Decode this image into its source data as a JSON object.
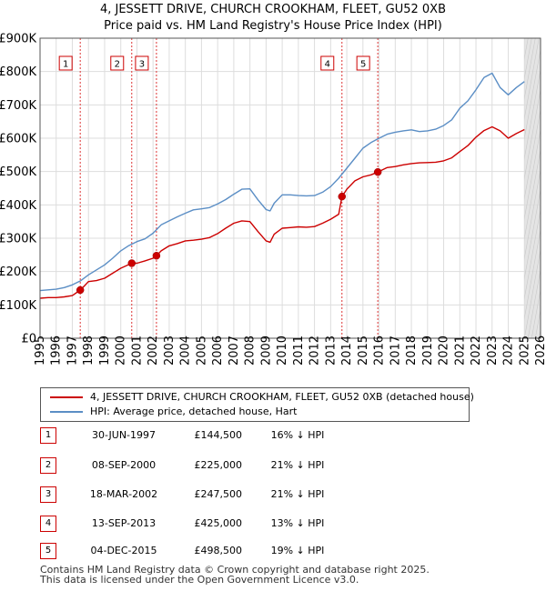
{
  "chart_data": {
    "type": "line",
    "title": "4, JESSETT DRIVE, CHURCH CROOKHAM, FLEET, GU52 0XB",
    "subtitle": "Price paid vs. HM Land Registry's House Price Index (HPI)",
    "xlabel": "",
    "ylabel": "",
    "xlim": [
      1995,
      2026
    ],
    "ylim": [
      0,
      900000
    ],
    "x_ticks": [
      "1995",
      "1996",
      "1997",
      "1998",
      "1999",
      "2000",
      "2001",
      "2002",
      "2003",
      "2004",
      "2005",
      "2006",
      "2007",
      "2008",
      "2009",
      "2010",
      "2011",
      "2012",
      "2013",
      "2014",
      "2015",
      "2016",
      "2017",
      "2018",
      "2019",
      "2020",
      "2021",
      "2022",
      "2023",
      "2024",
      "2025",
      "2026"
    ],
    "y_ticks": [
      {
        "value": 0,
        "label": "£0"
      },
      {
        "value": 100000,
        "label": "£100K"
      },
      {
        "value": 200000,
        "label": "£200K"
      },
      {
        "value": 300000,
        "label": "£300K"
      },
      {
        "value": 400000,
        "label": "£400K"
      },
      {
        "value": 500000,
        "label": "£500K"
      },
      {
        "value": 600000,
        "label": "£600K"
      },
      {
        "value": 700000,
        "label": "£700K"
      },
      {
        "value": 800000,
        "label": "£800K"
      },
      {
        "value": 900000,
        "label": "£900K"
      }
    ],
    "grid": true,
    "future_shading_from": 2025.0,
    "series": [
      {
        "name": "4, JESSETT DRIVE, CHURCH CROOKHAM, FLEET, GU52 0XB (detached house)",
        "color": "#cc0000",
        "x": [
          1995.0,
          1995.5,
          1996.0,
          1996.5,
          1997.0,
          1997.49,
          1997.75,
          1998.0,
          1998.5,
          1999.0,
          1999.5,
          2000.0,
          2000.68,
          2001.0,
          2001.5,
          2002.0,
          2002.21,
          2002.5,
          2003.0,
          2003.5,
          2004.0,
          2004.5,
          2005.0,
          2005.5,
          2006.0,
          2006.5,
          2007.0,
          2007.5,
          2008.0,
          2008.5,
          2009.0,
          2009.25,
          2009.5,
          2010.0,
          2010.5,
          2011.0,
          2011.5,
          2012.0,
          2012.5,
          2013.0,
          2013.5,
          2013.7,
          2014.0,
          2014.5,
          2015.0,
          2015.5,
          2015.92,
          2016.5,
          2017.0,
          2017.5,
          2018.0,
          2018.5,
          2019.0,
          2019.5,
          2020.0,
          2020.5,
          2021.0,
          2021.5,
          2022.0,
          2022.5,
          2023.0,
          2023.5,
          2024.0,
          2024.5,
          2025.0
        ],
        "values": [
          120000,
          122000,
          122000,
          124000,
          128000,
          144500,
          157000,
          170000,
          173000,
          180000,
          195000,
          210000,
          225000,
          225000,
          232000,
          240000,
          247500,
          262000,
          277000,
          284000,
          292000,
          294000,
          297000,
          302000,
          314000,
          330000,
          345000,
          352000,
          350000,
          320000,
          292000,
          288000,
          312000,
          330000,
          332000,
          334000,
          333000,
          335000,
          345000,
          357000,
          372000,
          425000,
          447000,
          472000,
          484000,
          490000,
          498500,
          512000,
          515000,
          520000,
          524000,
          526000,
          527000,
          528000,
          532000,
          541000,
          560000,
          578000,
          603000,
          623000,
          634000,
          622000,
          600000,
          614000,
          626000
        ]
      },
      {
        "name": "HPI: Average price, detached house, Hart",
        "color": "#5b8ec5",
        "x": [
          1995.0,
          1995.5,
          1996.0,
          1996.5,
          1997.0,
          1997.5,
          1998.0,
          1998.5,
          1999.0,
          1999.5,
          2000.0,
          2000.5,
          2001.0,
          2001.5,
          2002.0,
          2002.5,
          2003.0,
          2003.5,
          2004.0,
          2004.5,
          2005.0,
          2005.5,
          2006.0,
          2006.5,
          2007.0,
          2007.5,
          2008.0,
          2008.5,
          2009.0,
          2009.25,
          2009.5,
          2010.0,
          2010.5,
          2011.0,
          2011.5,
          2012.0,
          2012.5,
          2013.0,
          2013.5,
          2014.0,
          2014.5,
          2015.0,
          2015.5,
          2016.0,
          2016.5,
          2017.0,
          2017.5,
          2018.0,
          2018.5,
          2019.0,
          2019.5,
          2020.0,
          2020.5,
          2021.0,
          2021.5,
          2022.0,
          2022.5,
          2023.0,
          2023.5,
          2024.0,
          2024.5,
          2025.0
        ],
        "values": [
          143000,
          145000,
          147000,
          152000,
          160000,
          172000,
          190000,
          205000,
          220000,
          240000,
          262000,
          278000,
          290000,
          298000,
          315000,
          340000,
          352000,
          364000,
          375000,
          385000,
          388000,
          392000,
          403000,
          416000,
          432000,
          447000,
          448000,
          415000,
          386000,
          382000,
          405000,
          430000,
          430000,
          428000,
          427000,
          428000,
          438000,
          455000,
          480000,
          510000,
          540000,
          570000,
          587000,
          600000,
          612000,
          618000,
          622000,
          625000,
          620000,
          622000,
          627000,
          638000,
          655000,
          690000,
          712000,
          745000,
          782000,
          795000,
          752000,
          730000,
          752000,
          770000
        ]
      }
    ],
    "sales": [
      {
        "num": "1",
        "x": 1997.49,
        "value": 144500
      },
      {
        "num": "2",
        "x": 2000.68,
        "value": 225000
      },
      {
        "num": "3",
        "x": 2002.21,
        "value": 247500
      },
      {
        "num": "4",
        "x": 2013.7,
        "value": 425000
      },
      {
        "num": "5",
        "x": 2015.92,
        "value": 498500
      }
    ]
  },
  "legend": {
    "property_label": "4, JESSETT DRIVE, CHURCH CROOKHAM, FLEET, GU52 0XB (detached house)",
    "hpi_label": "HPI: Average price, detached house, Hart"
  },
  "sales_table": [
    {
      "num": "1",
      "date": "30-JUN-1997",
      "price": "£144,500",
      "hpi": "16% ↓ HPI"
    },
    {
      "num": "2",
      "date": "08-SEP-2000",
      "price": "£225,000",
      "hpi": "21% ↓ HPI"
    },
    {
      "num": "3",
      "date": "18-MAR-2002",
      "price": "£247,500",
      "hpi": "21% ↓ HPI"
    },
    {
      "num": "4",
      "date": "13-SEP-2013",
      "price": "£425,000",
      "hpi": "13% ↓ HPI"
    },
    {
      "num": "5",
      "date": "04-DEC-2015",
      "price": "£498,500",
      "hpi": "19% ↓ HPI"
    }
  ],
  "footer": {
    "line1": "Contains HM Land Registry data © Crown copyright and database right 2025.",
    "line2": "This data is licensed under the Open Government Licence v3.0."
  }
}
